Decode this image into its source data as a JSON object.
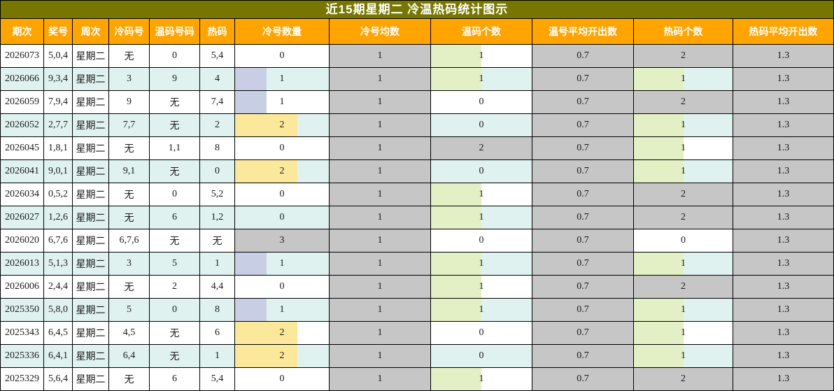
{
  "title": "近15期星期二 冷温热码统计图示",
  "colors": {
    "title_bg": "#777700",
    "title_text": "#FFFFFF",
    "header_bg": "#FFA400",
    "header_text": "#FFFFFF",
    "row_bg": "#FFFFFF",
    "row_alt_bg": "#E0F2F0",
    "gray_fill": "#C6C6C6",
    "border": "#000000",
    "cold_bar_1": "#C8CFE4",
    "cold_bar_2": "#FCE89B",
    "warm_hot_bar_1": "#E3EFC4"
  },
  "bars": {
    "cold_count": {
      "max": 3,
      "colors": {
        "1": "#C8CFE4",
        "2": "#FCE89B",
        "3": "#C6C6C6"
      }
    },
    "warm_count": {
      "max": 2,
      "colors": {
        "1": "#E3EFC4",
        "2": "#C6C6C6"
      }
    },
    "hot_count": {
      "max": 2,
      "colors": {
        "1": "#E3EFC4",
        "2": "#C6C6C6"
      }
    }
  },
  "chart_data": {
    "type": "table",
    "title": "近15期星期二 冷温热码统计图示",
    "columns": [
      {
        "key": "period",
        "label": "期次"
      },
      {
        "key": "prize",
        "label": "奖号"
      },
      {
        "key": "week",
        "label": "周次"
      },
      {
        "key": "cold_code",
        "label": "冷码号"
      },
      {
        "key": "warm_code",
        "label": "温码号码"
      },
      {
        "key": "hot_code",
        "label": "热码"
      },
      {
        "key": "cold_count",
        "label": "冷号数量"
      },
      {
        "key": "cold_avg",
        "label": "冷号均数"
      },
      {
        "key": "warm_count",
        "label": "温码个数"
      },
      {
        "key": "warm_avg",
        "label": "温号平均开出数"
      },
      {
        "key": "hot_count",
        "label": "热码个数"
      },
      {
        "key": "hot_avg",
        "label": "热码平均开出数"
      }
    ],
    "rows": [
      {
        "period": "2026073",
        "prize": "5,0,4",
        "week": "星期二",
        "cold_code": "无",
        "warm_code": "0",
        "hot_code": "5,4",
        "cold_count": 0,
        "cold_avg": "1",
        "warm_count": 1,
        "warm_avg": "0.7",
        "hot_count": 2,
        "hot_avg": "1.3"
      },
      {
        "period": "2026066",
        "prize": "9,3,4",
        "week": "星期二",
        "cold_code": "3",
        "warm_code": "9",
        "hot_code": "4",
        "cold_count": 1,
        "cold_avg": "1",
        "warm_count": 1,
        "warm_avg": "0.7",
        "hot_count": 1,
        "hot_avg": "1.3"
      },
      {
        "period": "2026059",
        "prize": "7,9,4",
        "week": "星期二",
        "cold_code": "9",
        "warm_code": "无",
        "hot_code": "7,4",
        "cold_count": 1,
        "cold_avg": "1",
        "warm_count": 0,
        "warm_avg": "0.7",
        "hot_count": 2,
        "hot_avg": "1.3"
      },
      {
        "period": "2026052",
        "prize": "2,7,7",
        "week": "星期二",
        "cold_code": "7,7",
        "warm_code": "无",
        "hot_code": "2",
        "cold_count": 2,
        "cold_avg": "1",
        "warm_count": 0,
        "warm_avg": "0.7",
        "hot_count": 1,
        "hot_avg": "1.3"
      },
      {
        "period": "2026045",
        "prize": "1,8,1",
        "week": "星期二",
        "cold_code": "无",
        "warm_code": "1,1",
        "hot_code": "8",
        "cold_count": 0,
        "cold_avg": "1",
        "warm_count": 2,
        "warm_avg": "0.7",
        "hot_count": 1,
        "hot_avg": "1.3"
      },
      {
        "period": "2026041",
        "prize": "9,0,1",
        "week": "星期二",
        "cold_code": "9,1",
        "warm_code": "无",
        "hot_code": "0",
        "cold_count": 2,
        "cold_avg": "1",
        "warm_count": 0,
        "warm_avg": "0.7",
        "hot_count": 1,
        "hot_avg": "1.3"
      },
      {
        "period": "2026034",
        "prize": "0,5,2",
        "week": "星期二",
        "cold_code": "无",
        "warm_code": "0",
        "hot_code": "5,2",
        "cold_count": 0,
        "cold_avg": "1",
        "warm_count": 1,
        "warm_avg": "0.7",
        "hot_count": 2,
        "hot_avg": "1.3"
      },
      {
        "period": "2026027",
        "prize": "1,2,6",
        "week": "星期二",
        "cold_code": "无",
        "warm_code": "6",
        "hot_code": "1,2",
        "cold_count": 0,
        "cold_avg": "1",
        "warm_count": 1,
        "warm_avg": "0.7",
        "hot_count": 2,
        "hot_avg": "1.3"
      },
      {
        "period": "2026020",
        "prize": "6,7,6",
        "week": "星期二",
        "cold_code": "6,7,6",
        "warm_code": "无",
        "hot_code": "无",
        "cold_count": 3,
        "cold_avg": "1",
        "warm_count": 0,
        "warm_avg": "0.7",
        "hot_count": 0,
        "hot_avg": "1.3"
      },
      {
        "period": "2026013",
        "prize": "5,1,3",
        "week": "星期二",
        "cold_code": "3",
        "warm_code": "5",
        "hot_code": "1",
        "cold_count": 1,
        "cold_avg": "1",
        "warm_count": 1,
        "warm_avg": "0.7",
        "hot_count": 1,
        "hot_avg": "1.3"
      },
      {
        "period": "2026006",
        "prize": "2,4,4",
        "week": "星期二",
        "cold_code": "无",
        "warm_code": "2",
        "hot_code": "4,4",
        "cold_count": 0,
        "cold_avg": "1",
        "warm_count": 1,
        "warm_avg": "0.7",
        "hot_count": 2,
        "hot_avg": "1.3"
      },
      {
        "period": "2025350",
        "prize": "5,8,0",
        "week": "星期二",
        "cold_code": "5",
        "warm_code": "0",
        "hot_code": "8",
        "cold_count": 1,
        "cold_avg": "1",
        "warm_count": 1,
        "warm_avg": "0.7",
        "hot_count": 1,
        "hot_avg": "1.3"
      },
      {
        "period": "2025343",
        "prize": "6,4,5",
        "week": "星期二",
        "cold_code": "4,5",
        "warm_code": "无",
        "hot_code": "6",
        "cold_count": 2,
        "cold_avg": "1",
        "warm_count": 0,
        "warm_avg": "0.7",
        "hot_count": 1,
        "hot_avg": "1.3"
      },
      {
        "period": "2025336",
        "prize": "6,4,1",
        "week": "星期二",
        "cold_code": "6,4",
        "warm_code": "无",
        "hot_code": "1",
        "cold_count": 2,
        "cold_avg": "1",
        "warm_count": 0,
        "warm_avg": "0.7",
        "hot_count": 1,
        "hot_avg": "1.3"
      },
      {
        "period": "2025329",
        "prize": "5,6,4",
        "week": "星期二",
        "cold_code": "无",
        "warm_code": "6",
        "hot_code": "5,4",
        "cold_count": 0,
        "cold_avg": "1",
        "warm_count": 1,
        "warm_avg": "0.7",
        "hot_count": 2,
        "hot_avg": "1.3"
      }
    ]
  }
}
